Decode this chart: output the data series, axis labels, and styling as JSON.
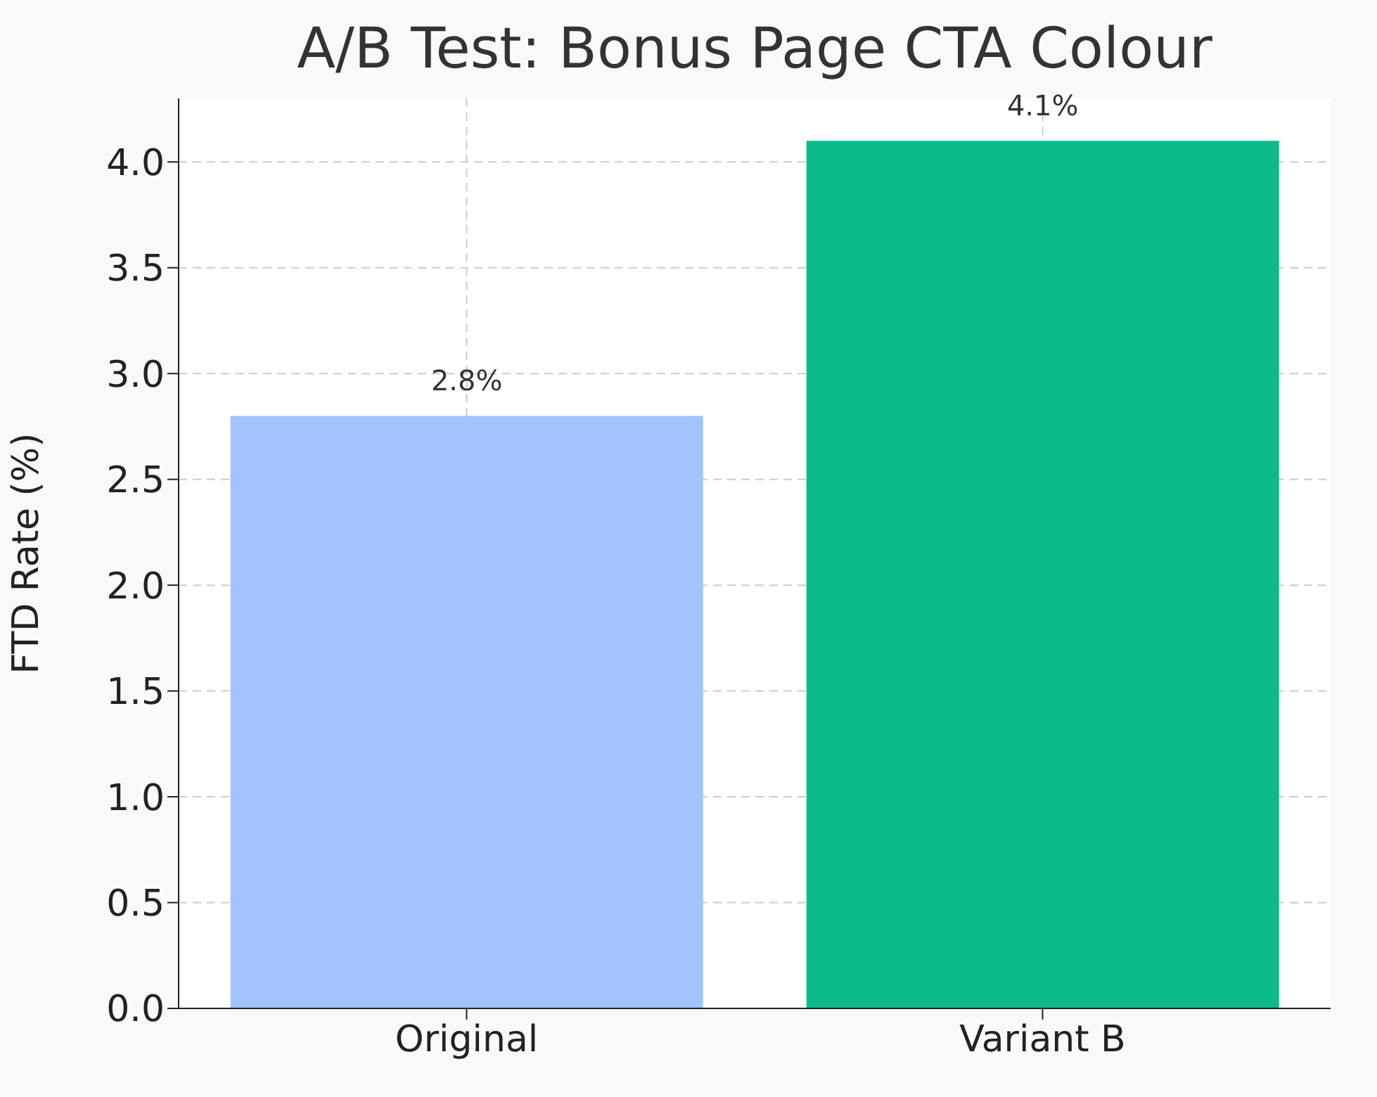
{
  "chart_data": {
    "type": "bar",
    "title": "A/B Test: Bonus Page CTA Colour",
    "ylabel": "FTD Rate (%)",
    "categories": [
      "Original",
      "Variant B"
    ],
    "values": [
      2.8,
      4.1
    ],
    "colors": [
      "#a0c4ff",
      "#0bbc8a"
    ],
    "value_labels": [
      "2.8%",
      "4.1%"
    ],
    "ylim": [
      0,
      4.3
    ],
    "yticks": [
      {
        "value": 0,
        "label": "0.0"
      },
      0.5,
      {
        "value": 1,
        "label": "1.0"
      },
      1.5,
      {
        "value": 2,
        "label": "2.0"
      },
      2.5,
      {
        "value": 3,
        "label": "3.0"
      },
      3.5,
      {
        "value": 4,
        "label": "4.0"
      }
    ],
    "grid": true
  }
}
